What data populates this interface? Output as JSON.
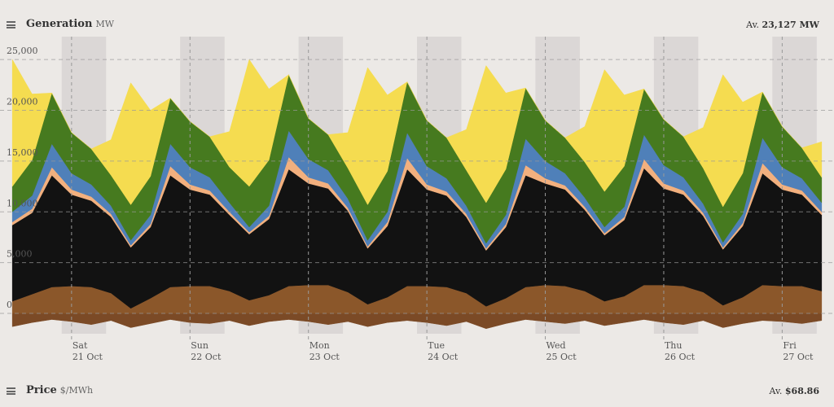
{
  "chart_data": {
    "type": "stacked-area",
    "title": "Generation",
    "unit": "MW",
    "average_prefix": "Av.",
    "average": "23,127 MW",
    "x": [
      -12,
      -8,
      -4,
      0,
      4,
      8,
      12,
      16,
      20,
      24,
      28,
      32,
      36,
      40,
      44,
      48,
      52,
      56,
      60,
      64,
      68,
      72,
      76,
      80,
      84,
      88,
      92,
      96,
      100,
      104,
      108,
      112,
      116,
      120,
      124,
      128,
      132,
      136,
      140,
      144,
      148,
      152
    ],
    "xlim": [
      -14.5,
      154.5
    ],
    "xticks": [
      {
        "value": 0,
        "label": "Sat\n21 Oct"
      },
      {
        "value": 24,
        "label": "Sun\n22 Oct"
      },
      {
        "value": 48,
        "label": "Mon\n23 Oct"
      },
      {
        "value": 72,
        "label": "Tue\n24 Oct"
      },
      {
        "value": 96,
        "label": "Wed\n25 Oct"
      },
      {
        "value": 120,
        "label": "Thu\n26 Oct"
      },
      {
        "value": 144,
        "label": "Fri\n27 Oct"
      }
    ],
    "ylim": [
      -2000,
      27250
    ],
    "yticks": [
      0,
      {
        "value": 5000,
        "label": "5,000"
      },
      {
        "value": 10000,
        "label": "10,000"
      },
      {
        "value": 15000,
        "label": "15,000"
      },
      {
        "value": 20000,
        "label": "20,000"
      },
      {
        "value": 25000,
        "label": "25,000"
      }
    ],
    "grid": true,
    "series": [
      {
        "color": "#7b4a26",
        "values": [
          -1300,
          -900,
          -600,
          -800,
          -1100,
          -700,
          -1400,
          -1000,
          -600,
          -900,
          -1000,
          -700,
          -1200,
          -800,
          -600,
          -800,
          -1100,
          -800,
          -1300,
          -900,
          -700,
          -900,
          -1200,
          -800,
          -1500,
          -1000,
          -600,
          -800,
          -1000,
          -700,
          -1200,
          -900,
          -600,
          -900,
          -1100,
          -700,
          -1400,
          -1000,
          -700,
          -800,
          -1000,
          -700
        ]
      },
      {
        "color": "#8b572a",
        "values": [
          1200,
          1900,
          2600,
          2700,
          2600,
          2000,
          500,
          1500,
          2600,
          2700,
          2700,
          2200,
          1300,
          1800,
          2700,
          2800,
          2800,
          2100,
          900,
          1600,
          2700,
          2700,
          2600,
          2000,
          700,
          1500,
          2600,
          2800,
          2700,
          2200,
          1200,
          1700,
          2800,
          2800,
          2700,
          2100,
          800,
          1600,
          2800,
          2700,
          2700,
          2200
        ]
      },
      {
        "color": "#121212",
        "values": [
          7500,
          8000,
          11000,
          9000,
          8500,
          7500,
          6000,
          7000,
          11000,
          9500,
          9000,
          7500,
          6500,
          7500,
          11500,
          10000,
          9500,
          8000,
          5500,
          7000,
          11500,
          9500,
          9000,
          7500,
          5500,
          7000,
          11000,
          10000,
          9500,
          8000,
          6500,
          7500,
          11500,
          9500,
          9000,
          7500,
          5500,
          7000,
          11000,
          9500,
          9000,
          7500
        ]
      },
      {
        "color": "#f2b07e",
        "values": [
          300,
          400,
          800,
          500,
          400,
          300,
          200,
          300,
          900,
          500,
          400,
          300,
          200,
          300,
          1200,
          600,
          500,
          300,
          200,
          400,
          1100,
          500,
          400,
          300,
          200,
          300,
          1000,
          500,
          400,
          300,
          200,
          300,
          900,
          500,
          400,
          300,
          200,
          300,
          1000,
          500,
          400,
          300
        ]
      },
      {
        "color": "#4f80b9",
        "values": [
          1000,
          1300,
          2300,
          1600,
          1200,
          800,
          500,
          900,
          2200,
          1700,
          1300,
          900,
          500,
          1000,
          2600,
          1800,
          1300,
          900,
          600,
          1000,
          2500,
          1800,
          1300,
          800,
          500,
          900,
          2600,
          1700,
          1200,
          900,
          600,
          1000,
          2400,
          1800,
          1300,
          900,
          500,
          900,
          2500,
          1700,
          1200,
          900
        ]
      },
      {
        "color": "#467a1f",
        "values": [
          2500,
          3500,
          5000,
          4000,
          3500,
          3000,
          3500,
          3800,
          4500,
          4500,
          4000,
          3500,
          4000,
          4500,
          5500,
          4000,
          3500,
          3000,
          3500,
          4000,
          5000,
          4500,
          4000,
          3500,
          4000,
          4500,
          5000,
          4000,
          3500,
          3500,
          3500,
          4000,
          4500,
          4500,
          4000,
          3500,
          3500,
          4000,
          4500,
          4000,
          3000,
          2500
        ]
      },
      {
        "color": "#f5dc50",
        "values": [
          12500,
          6500,
          0,
          0,
          0,
          3500,
          12000,
          6500,
          0,
          0,
          0,
          3500,
          12500,
          7000,
          0,
          0,
          0,
          3500,
          13500,
          7500,
          0,
          0,
          0,
          4000,
          13500,
          7500,
          0,
          0,
          0,
          3500,
          12000,
          7000,
          0,
          0,
          0,
          4000,
          13000,
          7000,
          0,
          0,
          0,
          3500
        ]
      }
    ]
  },
  "price_panel": {
    "title": "Price",
    "unit": "$/MWh",
    "average_prefix": "Av.",
    "average": "$68.86"
  }
}
